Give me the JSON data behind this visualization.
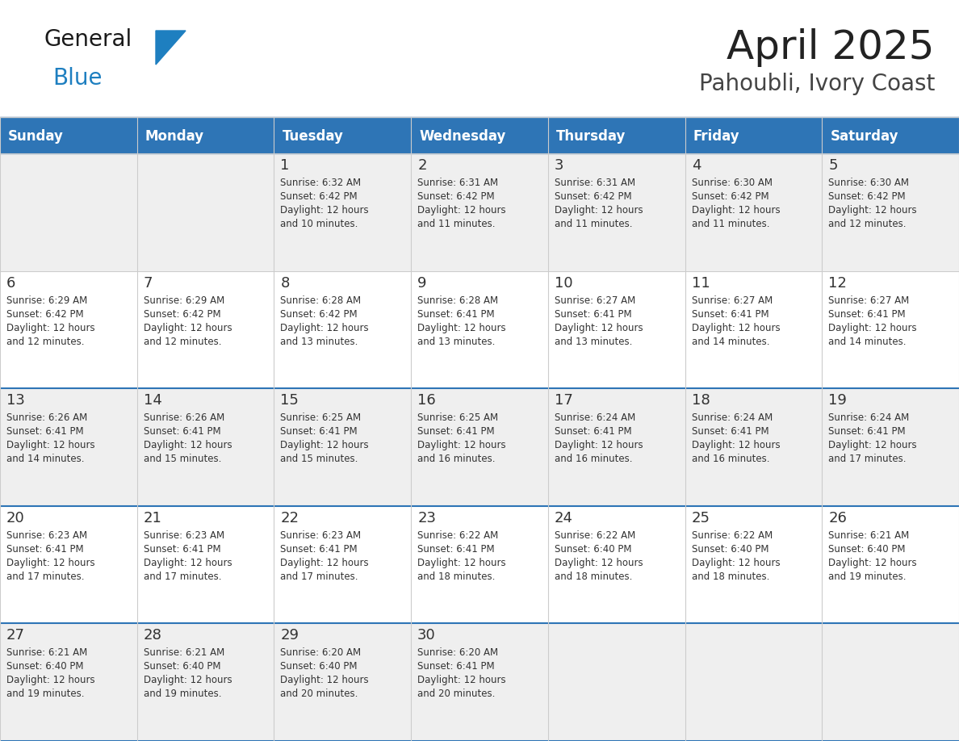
{
  "title": "April 2025",
  "subtitle": "Pahoubli, Ivory Coast",
  "days_of_week": [
    "Sunday",
    "Monday",
    "Tuesday",
    "Wednesday",
    "Thursday",
    "Friday",
    "Saturday"
  ],
  "header_bg": "#2E75B6",
  "header_text": "#FFFFFF",
  "row_bg_alt": "#EFEFEF",
  "row_bg_white": "#FFFFFF",
  "separator_color": "#2E75B6",
  "cell_border_color": "#CCCCCC",
  "day_num_color": "#333333",
  "info_text_color": "#333333",
  "title_color": "#222222",
  "subtitle_color": "#444444",
  "logo_text_color": "#1A1A1A",
  "logo_blue_color": "#1E7FC0",
  "calendar": [
    [
      null,
      null,
      {
        "day": 1,
        "sunrise": "6:32 AM",
        "sunset": "6:42 PM",
        "daylight": "12 hours",
        "daylight2": "and 10 minutes."
      },
      {
        "day": 2,
        "sunrise": "6:31 AM",
        "sunset": "6:42 PM",
        "daylight": "12 hours",
        "daylight2": "and 11 minutes."
      },
      {
        "day": 3,
        "sunrise": "6:31 AM",
        "sunset": "6:42 PM",
        "daylight": "12 hours",
        "daylight2": "and 11 minutes."
      },
      {
        "day": 4,
        "sunrise": "6:30 AM",
        "sunset": "6:42 PM",
        "daylight": "12 hours",
        "daylight2": "and 11 minutes."
      },
      {
        "day": 5,
        "sunrise": "6:30 AM",
        "sunset": "6:42 PM",
        "daylight": "12 hours",
        "daylight2": "and 12 minutes."
      }
    ],
    [
      {
        "day": 6,
        "sunrise": "6:29 AM",
        "sunset": "6:42 PM",
        "daylight": "12 hours",
        "daylight2": "and 12 minutes."
      },
      {
        "day": 7,
        "sunrise": "6:29 AM",
        "sunset": "6:42 PM",
        "daylight": "12 hours",
        "daylight2": "and 12 minutes."
      },
      {
        "day": 8,
        "sunrise": "6:28 AM",
        "sunset": "6:42 PM",
        "daylight": "12 hours",
        "daylight2": "and 13 minutes."
      },
      {
        "day": 9,
        "sunrise": "6:28 AM",
        "sunset": "6:41 PM",
        "daylight": "12 hours",
        "daylight2": "and 13 minutes."
      },
      {
        "day": 10,
        "sunrise": "6:27 AM",
        "sunset": "6:41 PM",
        "daylight": "12 hours",
        "daylight2": "and 13 minutes."
      },
      {
        "day": 11,
        "sunrise": "6:27 AM",
        "sunset": "6:41 PM",
        "daylight": "12 hours",
        "daylight2": "and 14 minutes."
      },
      {
        "day": 12,
        "sunrise": "6:27 AM",
        "sunset": "6:41 PM",
        "daylight": "12 hours",
        "daylight2": "and 14 minutes."
      }
    ],
    [
      {
        "day": 13,
        "sunrise": "6:26 AM",
        "sunset": "6:41 PM",
        "daylight": "12 hours",
        "daylight2": "and 14 minutes."
      },
      {
        "day": 14,
        "sunrise": "6:26 AM",
        "sunset": "6:41 PM",
        "daylight": "12 hours",
        "daylight2": "and 15 minutes."
      },
      {
        "day": 15,
        "sunrise": "6:25 AM",
        "sunset": "6:41 PM",
        "daylight": "12 hours",
        "daylight2": "and 15 minutes."
      },
      {
        "day": 16,
        "sunrise": "6:25 AM",
        "sunset": "6:41 PM",
        "daylight": "12 hours",
        "daylight2": "and 16 minutes."
      },
      {
        "day": 17,
        "sunrise": "6:24 AM",
        "sunset": "6:41 PM",
        "daylight": "12 hours",
        "daylight2": "and 16 minutes."
      },
      {
        "day": 18,
        "sunrise": "6:24 AM",
        "sunset": "6:41 PM",
        "daylight": "12 hours",
        "daylight2": "and 16 minutes."
      },
      {
        "day": 19,
        "sunrise": "6:24 AM",
        "sunset": "6:41 PM",
        "daylight": "12 hours",
        "daylight2": "and 17 minutes."
      }
    ],
    [
      {
        "day": 20,
        "sunrise": "6:23 AM",
        "sunset": "6:41 PM",
        "daylight": "12 hours",
        "daylight2": "and 17 minutes."
      },
      {
        "day": 21,
        "sunrise": "6:23 AM",
        "sunset": "6:41 PM",
        "daylight": "12 hours",
        "daylight2": "and 17 minutes."
      },
      {
        "day": 22,
        "sunrise": "6:23 AM",
        "sunset": "6:41 PM",
        "daylight": "12 hours",
        "daylight2": "and 17 minutes."
      },
      {
        "day": 23,
        "sunrise": "6:22 AM",
        "sunset": "6:41 PM",
        "daylight": "12 hours",
        "daylight2": "and 18 minutes."
      },
      {
        "day": 24,
        "sunrise": "6:22 AM",
        "sunset": "6:40 PM",
        "daylight": "12 hours",
        "daylight2": "and 18 minutes."
      },
      {
        "day": 25,
        "sunrise": "6:22 AM",
        "sunset": "6:40 PM",
        "daylight": "12 hours",
        "daylight2": "and 18 minutes."
      },
      {
        "day": 26,
        "sunrise": "6:21 AM",
        "sunset": "6:40 PM",
        "daylight": "12 hours",
        "daylight2": "and 19 minutes."
      }
    ],
    [
      {
        "day": 27,
        "sunrise": "6:21 AM",
        "sunset": "6:40 PM",
        "daylight": "12 hours",
        "daylight2": "and 19 minutes."
      },
      {
        "day": 28,
        "sunrise": "6:21 AM",
        "sunset": "6:40 PM",
        "daylight": "12 hours",
        "daylight2": "and 19 minutes."
      },
      {
        "day": 29,
        "sunrise": "6:20 AM",
        "sunset": "6:40 PM",
        "daylight": "12 hours",
        "daylight2": "and 20 minutes."
      },
      {
        "day": 30,
        "sunrise": "6:20 AM",
        "sunset": "6:41 PM",
        "daylight": "12 hours",
        "daylight2": "and 20 minutes."
      },
      null,
      null,
      null
    ]
  ]
}
